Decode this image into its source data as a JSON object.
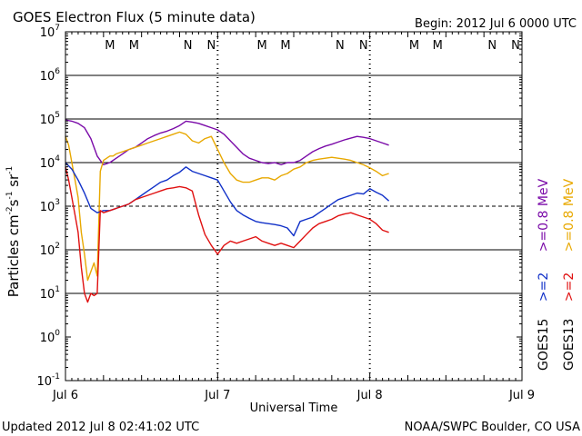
{
  "header": {
    "title": "GOES Electron Flux (5 minute data)",
    "begin": "Begin: 2012 Jul 6 0000 UTC"
  },
  "footer": {
    "updated": "Updated 2012 Jul  8 02:41:02 UTC",
    "source": "NOAA/SWPC Boulder, CO USA"
  },
  "colors": {
    "purple": "#7a0aa8",
    "orange": "#e8a800",
    "blue": "#1030c8",
    "red": "#e01010",
    "marker_red": "#e01010",
    "marker_blue": "#1030c8"
  },
  "chart_data": {
    "type": "line",
    "title": "GOES Electron Flux (5 minute data)",
    "xlabel": "Universal Time",
    "ylabel_parts": {
      "base": "Particles cm",
      "e1": "-2",
      "mid1": "s",
      "e2": "-1",
      "mid2": "sr",
      "e3": "-1"
    },
    "x_unit": "hours since 2012 Jul 6 0000 UTC",
    "xlim": [
      0,
      72
    ],
    "x_ticks": [
      {
        "x": 0,
        "label": "Jul 6"
      },
      {
        "x": 24,
        "label": "Jul 7"
      },
      {
        "x": 48,
        "label": "Jul 8"
      },
      {
        "x": 72,
        "label": "Jul 9"
      }
    ],
    "y_scale": "log",
    "ylim_exp": [
      -1,
      7
    ],
    "y_ticks": [
      {
        "exp": 7,
        "base": "10",
        "sup": "7"
      },
      {
        "exp": 6,
        "base": "10",
        "sup": "6"
      },
      {
        "exp": 5,
        "base": "10",
        "sup": "5"
      },
      {
        "exp": 4,
        "base": "10",
        "sup": "4"
      },
      {
        "exp": 3,
        "base": "10",
        "sup": "3"
      },
      {
        "exp": 2,
        "base": "10",
        "sup": "2"
      },
      {
        "exp": 1,
        "base": "10",
        "sup": "1"
      },
      {
        "exp": 0,
        "base": "10",
        "sup": "0"
      },
      {
        "exp": -1,
        "base": "10",
        "sup": "-1"
      }
    ],
    "grid": {
      "horizontal_exps": [
        1,
        2,
        4,
        5,
        6
      ],
      "dashed_exp": 3,
      "dashed_vertical_x": [
        24,
        48
      ]
    },
    "markers": [
      {
        "x": 7.0,
        "label": "M",
        "color": "red"
      },
      {
        "x": 10.8,
        "label": "M",
        "color": "blue"
      },
      {
        "x": 19.3,
        "label": "N",
        "color": "red"
      },
      {
        "x": 23.0,
        "label": "N",
        "color": "blue"
      },
      {
        "x": 31.0,
        "label": "M",
        "color": "red"
      },
      {
        "x": 34.7,
        "label": "M",
        "color": "blue"
      },
      {
        "x": 43.3,
        "label": "N",
        "color": "red"
      },
      {
        "x": 47.0,
        "label": "N",
        "color": "blue"
      },
      {
        "x": 55.0,
        "label": "M",
        "color": "red"
      },
      {
        "x": 58.7,
        "label": "M",
        "color": "blue"
      },
      {
        "x": 67.3,
        "label": "N",
        "color": "red"
      },
      {
        "x": 71.0,
        "label": "N",
        "color": "blue"
      }
    ],
    "legend": [
      {
        "text": ">=0.8 MeV",
        "color": "purple"
      },
      {
        "text": ">=0.8 MeV",
        "color": "orange"
      },
      {
        "text": ">=2",
        "color": "blue"
      },
      {
        "text": ">=2",
        "color": "red"
      },
      {
        "text": "GOES15",
        "color": "black"
      },
      {
        "text": "GOES13",
        "color": "black"
      }
    ],
    "series": [
      {
        "name": "GOES15 >=0.8 MeV",
        "color": "purple",
        "x": [
          0,
          1,
          2,
          3,
          4,
          5,
          6,
          7,
          8,
          9,
          10,
          11,
          12,
          13,
          14,
          15,
          16,
          17,
          18,
          19,
          20,
          21,
          22,
          23,
          24,
          25,
          26,
          27,
          28,
          29,
          30,
          31,
          32,
          33,
          34,
          35,
          36,
          37,
          38,
          39,
          40,
          41,
          42,
          43,
          44,
          45,
          46,
          47,
          48,
          49,
          50,
          51
        ],
        "log": [
          4.98,
          4.95,
          4.9,
          4.8,
          4.55,
          4.15,
          3.95,
          4.0,
          4.1,
          4.2,
          4.3,
          4.35,
          4.45,
          4.55,
          4.62,
          4.68,
          4.72,
          4.78,
          4.85,
          4.95,
          4.93,
          4.9,
          4.85,
          4.8,
          4.75,
          4.65,
          4.5,
          4.35,
          4.2,
          4.1,
          4.05,
          4.0,
          3.98,
          4.0,
          3.95,
          4.0,
          4.0,
          4.05,
          4.15,
          4.25,
          4.32,
          4.38,
          4.42,
          4.47,
          4.52,
          4.56,
          4.6,
          4.58,
          4.55,
          4.5,
          4.45,
          4.4
        ]
      },
      {
        "name": "GOES13 >=0.8 MeV",
        "color": "orange",
        "x": [
          0,
          0.5,
          1,
          1.5,
          2,
          2.5,
          3,
          3.5,
          4,
          4.5,
          5,
          5.5,
          6,
          6.5,
          7,
          7.5,
          8,
          9,
          10,
          11,
          12,
          13,
          14,
          15,
          16,
          17,
          18,
          19,
          20,
          21,
          22,
          23,
          24,
          25,
          26,
          27,
          28,
          29,
          30,
          31,
          32,
          33,
          34,
          35,
          36,
          37,
          38,
          39,
          40,
          41,
          42,
          43,
          44,
          45,
          46,
          47,
          48,
          49,
          50,
          51
        ],
        "log": [
          4.6,
          4.4,
          4.0,
          3.6,
          3.2,
          2.4,
          1.9,
          1.3,
          1.5,
          1.7,
          1.4,
          3.8,
          4.05,
          4.1,
          4.15,
          4.15,
          4.2,
          4.25,
          4.3,
          4.35,
          4.4,
          4.45,
          4.5,
          4.55,
          4.6,
          4.65,
          4.7,
          4.65,
          4.5,
          4.45,
          4.55,
          4.6,
          4.3,
          4.0,
          3.75,
          3.6,
          3.55,
          3.55,
          3.6,
          3.65,
          3.65,
          3.6,
          3.7,
          3.75,
          3.85,
          3.9,
          4.0,
          4.05,
          4.08,
          4.1,
          4.12,
          4.1,
          4.08,
          4.05,
          4.0,
          3.95,
          3.88,
          3.8,
          3.7,
          3.75
        ]
      },
      {
        "name": "GOES15 >=2",
        "color": "blue",
        "x": [
          0,
          1,
          2,
          3,
          4,
          5,
          6,
          7,
          8,
          9,
          10,
          11,
          12,
          13,
          14,
          15,
          16,
          17,
          18,
          19,
          20,
          21,
          22,
          23,
          24,
          25,
          26,
          27,
          28,
          29,
          30,
          31,
          32,
          33,
          34,
          35,
          36,
          37,
          38,
          39,
          40,
          41,
          42,
          43,
          44,
          45,
          46,
          47,
          48,
          49,
          50,
          51
        ],
        "log": [
          4.0,
          3.85,
          3.6,
          3.3,
          2.95,
          2.85,
          2.9,
          2.9,
          2.95,
          3.0,
          3.05,
          3.15,
          3.25,
          3.35,
          3.45,
          3.55,
          3.6,
          3.7,
          3.78,
          3.9,
          3.8,
          3.75,
          3.7,
          3.65,
          3.6,
          3.35,
          3.1,
          2.9,
          2.8,
          2.72,
          2.65,
          2.62,
          2.6,
          2.58,
          2.55,
          2.5,
          2.32,
          2.65,
          2.7,
          2.75,
          2.85,
          2.95,
          3.05,
          3.15,
          3.2,
          3.25,
          3.3,
          3.28,
          3.4,
          3.32,
          3.25,
          3.12
        ]
      },
      {
        "name": "GOES13 >=2",
        "color": "red",
        "x": [
          0,
          0.5,
          1,
          1.5,
          2,
          2.5,
          3,
          3.5,
          4,
          4.5,
          5,
          5.5,
          6,
          7,
          8,
          9,
          10,
          11,
          12,
          13,
          14,
          15,
          16,
          17,
          18,
          19,
          20,
          21,
          22,
          23,
          24,
          25,
          26,
          27,
          28,
          29,
          30,
          31,
          32,
          33,
          34,
          35,
          36,
          37,
          38,
          39,
          40,
          41,
          42,
          43,
          44,
          45,
          46,
          47,
          48,
          49,
          50,
          51
        ],
        "log": [
          3.9,
          3.6,
          3.2,
          2.8,
          2.4,
          1.6,
          1.0,
          0.8,
          1.0,
          0.95,
          1.0,
          2.9,
          2.85,
          2.9,
          2.95,
          3.0,
          3.05,
          3.15,
          3.2,
          3.25,
          3.3,
          3.35,
          3.4,
          3.42,
          3.45,
          3.42,
          3.35,
          2.8,
          2.35,
          2.1,
          1.9,
          2.1,
          2.2,
          2.15,
          2.2,
          2.25,
          2.3,
          2.2,
          2.15,
          2.1,
          2.15,
          2.1,
          2.05,
          2.2,
          2.35,
          2.5,
          2.6,
          2.65,
          2.7,
          2.78,
          2.82,
          2.85,
          2.8,
          2.75,
          2.7,
          2.6,
          2.45,
          2.4
        ]
      }
    ]
  }
}
